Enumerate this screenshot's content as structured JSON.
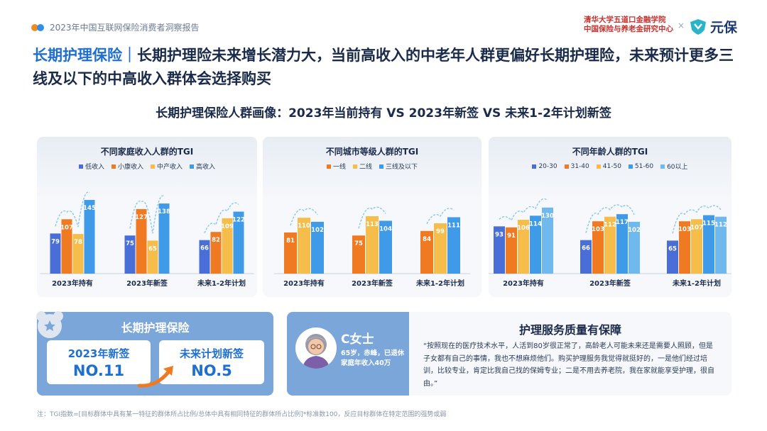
{
  "header": {
    "report_title": "2023年中国互联网保险消费者洞察报告",
    "partner_line1": "清华大学五道口金融学院",
    "partner_line2": "中国保险与养老金研究中心",
    "times_sign": "×",
    "brand_name": "元保"
  },
  "headline": {
    "tag": "长期护理保险｜",
    "text": "长期护理险未来增长潜力大，当前高收入的中老年人群更偏好长期护理险，未来预计更多三线及以下的中高收入群体会选择购买"
  },
  "subtitle": "长期护理保险人群画像：2023年当前持有 VS 2023年新签 VS 未来1-2年计划新签",
  "colors": {
    "accent": "#1e6fd0",
    "brand": "#1c3a6e",
    "bar_blue_dark": "#4a6ed8",
    "bar_orange": "#f07a22",
    "bar_yellow": "#f6bd4a",
    "bar_blue": "#3f9ae8",
    "bar_blue_light": "#6fb9ef",
    "card": "#7aa6da"
  },
  "chart_data": [
    {
      "type": "bar",
      "title": "不同家庭收入人群的TGI",
      "categories": [
        "2023年持有",
        "2023年新签",
        "未来1-2年计划"
      ],
      "series": [
        {
          "name": "低收入",
          "values": [
            79,
            75,
            66
          ],
          "color": "#4a6ed8"
        },
        {
          "name": "小康收入",
          "values": [
            107,
            127,
            82
          ],
          "color": "#f07a22"
        },
        {
          "name": "中产收入",
          "values": [
            78,
            65,
            109
          ],
          "color": "#f6bd4a"
        },
        {
          "name": "高收入",
          "values": [
            145,
            138,
            122
          ],
          "color": "#3f9ae8"
        }
      ],
      "ylim": [
        0,
        160
      ],
      "grid": false,
      "legend": "top"
    },
    {
      "type": "bar",
      "title": "不同城市等级人群的TGI",
      "categories": [
        "2023年持有",
        "2023年新签",
        "未来1-2年计划"
      ],
      "series": [
        {
          "name": "一线",
          "values": [
            81,
            75,
            84
          ],
          "color": "#f07a22"
        },
        {
          "name": "二线",
          "values": [
            110,
            113,
            99
          ],
          "color": "#f6bd4a"
        },
        {
          "name": "三线及以下",
          "values": [
            102,
            104,
            111
          ],
          "color": "#3f9ae8"
        }
      ],
      "ylim": [
        0,
        160
      ],
      "grid": false,
      "legend": "top"
    },
    {
      "type": "bar",
      "title": "不同年龄人群的TGI",
      "categories": [
        "2023年持有",
        "2023年新签",
        "未来1-2年计划"
      ],
      "series": [
        {
          "name": "20-30",
          "values": [
            93,
            66,
            65
          ],
          "color": "#4a6ed8"
        },
        {
          "name": "31-40",
          "values": [
            91,
            103,
            103
          ],
          "color": "#f07a22"
        },
        {
          "name": "41-50",
          "values": [
            106,
            112,
            107
          ],
          "color": "#f6bd4a"
        },
        {
          "name": "51-60",
          "values": [
            114,
            117,
            115
          ],
          "color": "#3f9ae8"
        },
        {
          "name": "60以上",
          "values": [
            130,
            102,
            112
          ],
          "color": "#6fb9ef"
        }
      ],
      "ylim": [
        0,
        160
      ],
      "grid": false,
      "legend": "top"
    }
  ],
  "ltc_card": {
    "title": "长期护理保险",
    "badge1_label": "2023年新签",
    "badge1_value": "NO.11",
    "badge2_label": "未来计划新签",
    "badge2_value": "NO.5"
  },
  "persona": {
    "name": "C女士",
    "info_line1": "65岁，赤峰，已退休",
    "info_line2": "家庭年收入40万",
    "heading": "护理服务质量有保障",
    "quote": "“按照现在的医疗技术水平，人活到80岁很正常了，高龄老人可能未来还是需要人照顾，但是子女都有自己的事情，我也不想麻烦他们。购买护理服务我觉得就挺好的，一是他们经过培训，比较专业，肯定比我自己找的保姆专业；二是不用去养老院，我在家就能享受护理，很自由。”"
  },
  "footnote": "注：TGI指数=[目标群体中具有某一特征的群体所占比例/总体中具有相同特征的群体所占比例]*标准数100，反应目标群体在特定范围的强势或弱"
}
